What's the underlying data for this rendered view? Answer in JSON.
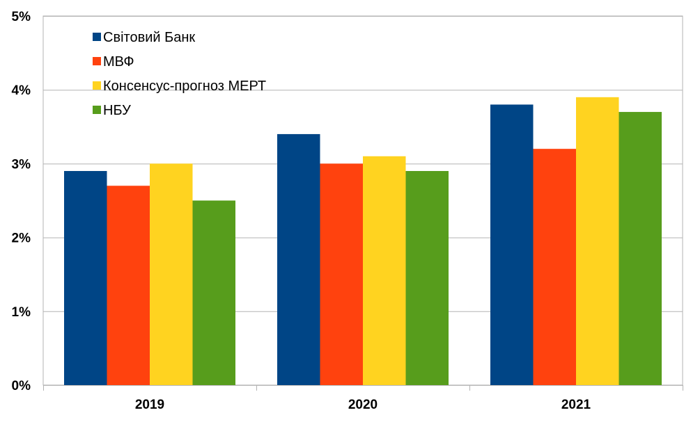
{
  "chart_data": {
    "type": "bar",
    "title": "",
    "xlabel": "",
    "ylabel": "",
    "categories": [
      "2019",
      "2020",
      "2021"
    ],
    "ylim": [
      0,
      5
    ],
    "yticks": [
      0,
      1,
      2,
      3,
      4,
      5
    ],
    "ytick_labels": [
      "0%",
      "1%",
      "2%",
      "3%",
      "4%",
      "5%"
    ],
    "grid": true,
    "legend_position": "top-left",
    "series": [
      {
        "name": "Світовий Банк",
        "color": "#004586",
        "values": [
          2.9,
          3.4,
          3.8
        ]
      },
      {
        "name": "МВФ",
        "color": "#ff420e",
        "values": [
          2.7,
          3.0,
          3.2
        ]
      },
      {
        "name": "Консенсус-прогноз МЕРТ",
        "color": "#ffd320",
        "values": [
          3.0,
          3.1,
          3.9
        ]
      },
      {
        "name": "НБУ",
        "color": "#579d1c",
        "values": [
          2.5,
          2.9,
          3.7
        ]
      }
    ]
  }
}
